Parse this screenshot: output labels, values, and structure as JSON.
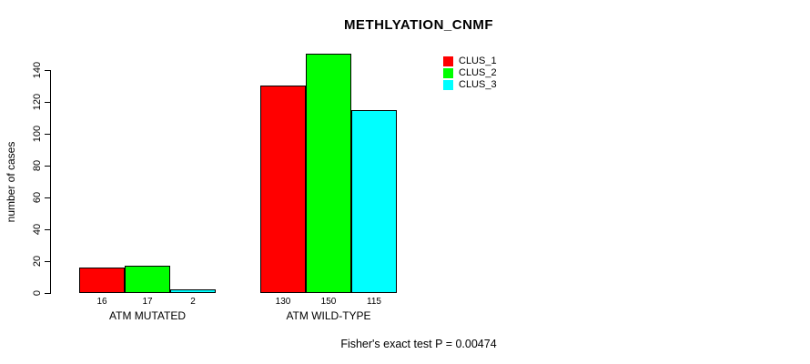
{
  "chart_data": {
    "type": "bar",
    "title": "METHLYATION_CNMF",
    "xlabel": "",
    "ylabel": "number of cases",
    "categories": [
      "ATM MUTATED",
      "ATM WILD-TYPE"
    ],
    "series": [
      {
        "name": "CLUS_1",
        "color": "#ff0000",
        "values": [
          16,
          130
        ]
      },
      {
        "name": "CLUS_2",
        "color": "#00ff00",
        "values": [
          17,
          150
        ]
      },
      {
        "name": "CLUS_3",
        "color": "#00ffff",
        "values": [
          2,
          115
        ]
      }
    ],
    "bar_value_labels": [
      [
        16,
        17,
        2
      ],
      [
        130,
        150,
        115
      ]
    ],
    "yticks": [
      0,
      20,
      40,
      60,
      80,
      100,
      120,
      140
    ],
    "ylim": [
      0,
      140
    ],
    "bar_border_color": "#000000",
    "grid": false,
    "legend_position": "top-right"
  },
  "footer": {
    "text": "Fisher's exact test P = 0.00474"
  }
}
